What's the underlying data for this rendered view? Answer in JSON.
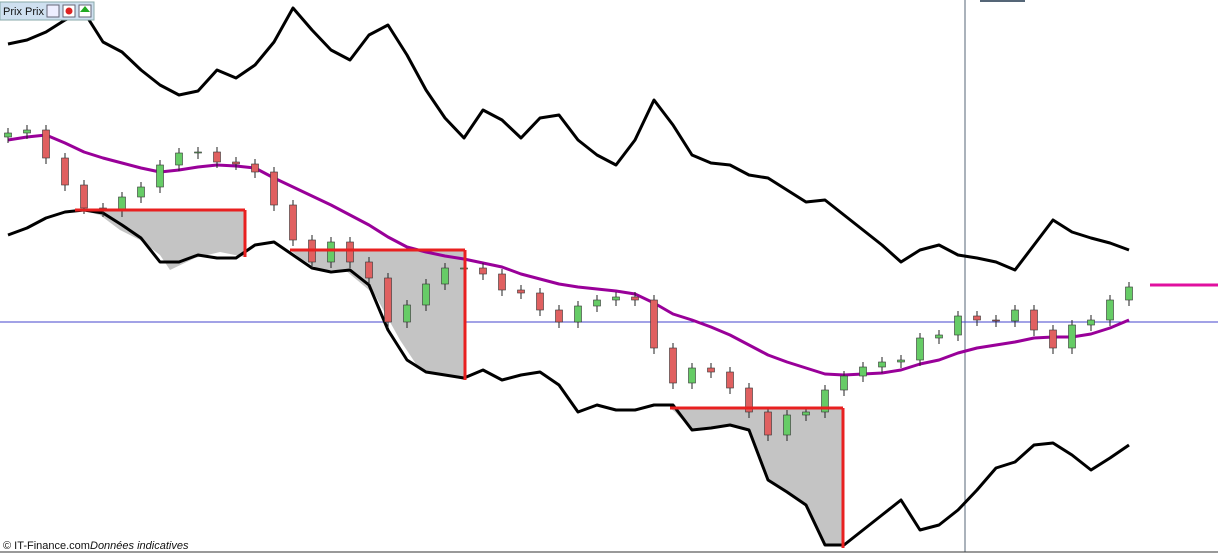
{
  "header": {
    "title": "Prix Prix"
  },
  "footer": {
    "source": "© IT-Finance.com",
    "note": "Données indicatives"
  },
  "chart_data": {
    "type": "candlestick",
    "categories": [
      null,
      null,
      null,
      null,
      null,
      null,
      null,
      null,
      null,
      null,
      null,
      null,
      null,
      null,
      null,
      null,
      null,
      null,
      null,
      null,
      null,
      null,
      null,
      null,
      null,
      null,
      null,
      null,
      null,
      null,
      null,
      null,
      null,
      null,
      null,
      null,
      null,
      null,
      null,
      null,
      null,
      null,
      null,
      null,
      null,
      null,
      null,
      null,
      null,
      null,
      null,
      null,
      null,
      null,
      null,
      null,
      null,
      null,
      null,
      null
    ],
    "open": [
      418,
      422,
      425,
      397,
      370,
      347,
      344,
      358,
      368,
      390,
      402,
      403,
      393,
      391,
      383,
      350,
      315,
      293,
      313,
      293,
      277,
      233,
      250,
      271,
      287,
      287,
      281,
      265,
      262,
      245,
      233,
      249,
      255,
      258,
      255,
      207,
      172,
      187,
      183,
      167,
      143,
      120,
      140,
      143,
      165,
      179,
      188,
      193,
      195,
      217,
      220,
      239,
      235,
      234,
      245,
      225,
      207,
      230,
      235,
      255
    ],
    "high": [
      427,
      430,
      430,
      402,
      375,
      352,
      363,
      373,
      395,
      407,
      408,
      408,
      398,
      396,
      388,
      355,
      320,
      318,
      318,
      298,
      282,
      255,
      276,
      292,
      292,
      292,
      286,
      270,
      267,
      250,
      254,
      260,
      263,
      263,
      260,
      212,
      192,
      192,
      188,
      172,
      148,
      145,
      148,
      170,
      184,
      193,
      198,
      200,
      222,
      225,
      244,
      244,
      240,
      250,
      250,
      230,
      235,
      240,
      260,
      273
    ],
    "low": [
      412,
      416,
      391,
      364,
      341,
      338,
      338,
      352,
      362,
      384,
      396,
      387,
      385,
      377,
      344,
      309,
      287,
      287,
      287,
      271,
      227,
      227,
      244,
      265,
      281,
      275,
      259,
      256,
      239,
      227,
      227,
      243,
      249,
      249,
      201,
      166,
      166,
      177,
      161,
      137,
      114,
      114,
      134,
      137,
      159,
      173,
      182,
      187,
      189,
      211,
      214,
      229,
      228,
      228,
      219,
      201,
      201,
      224,
      229,
      249
    ],
    "close": [
      422,
      425,
      397,
      370,
      347,
      344,
      358,
      368,
      390,
      402,
      403,
      393,
      391,
      383,
      350,
      315,
      293,
      313,
      293,
      277,
      233,
      250,
      271,
      287,
      287,
      281,
      265,
      262,
      245,
      233,
      249,
      255,
      258,
      255,
      207,
      172,
      187,
      183,
      167,
      143,
      120,
      140,
      143,
      165,
      179,
      188,
      193,
      195,
      217,
      220,
      239,
      235,
      234,
      245,
      225,
      207,
      230,
      235,
      255,
      268
    ],
    "up_color": "#66cc66",
    "down_color": "#e06060",
    "series": [
      {
        "color": "#000000",
        "values": [
          511,
          515,
          523,
          535,
          543,
          513,
          503,
          485,
          470,
          460,
          464,
          485,
          477,
          490,
          513,
          547,
          525,
          505,
          495,
          520,
          530,
          500,
          465,
          437,
          417,
          445,
          435,
          417,
          437,
          440,
          415,
          400,
          390,
          415,
          455,
          430,
          400,
          392,
          390,
          380,
          377,
          365,
          353,
          355,
          340,
          325,
          310,
          293,
          305,
          310,
          300,
          297,
          293,
          285,
          310,
          335,
          323,
          317,
          312,
          305
        ]
      },
      {
        "color": "#000000",
        "values": [
          320,
          327,
          337,
          343,
          345,
          342,
          330,
          317,
          293,
          293,
          300,
          297,
          297,
          310,
          313,
          300,
          287,
          283,
          285,
          270,
          225,
          195,
          183,
          180,
          177,
          185,
          175,
          180,
          183,
          170,
          143,
          150,
          145,
          145,
          150,
          150,
          125,
          127,
          130,
          125,
          75,
          63,
          50,
          10,
          10,
          25,
          40,
          55,
          25,
          30,
          45,
          65,
          87,
          93,
          110,
          112,
          100,
          85,
          97,
          110
        ]
      },
      {
        "color": "#990099",
        "values": [
          415,
          418,
          420,
          412,
          403,
          397,
          392,
          387,
          383,
          385,
          388,
          390,
          389,
          387,
          377,
          368,
          359,
          350,
          340,
          330,
          318,
          308,
          303,
          299,
          296,
          292,
          288,
          281,
          276,
          271,
          268,
          266,
          264,
          261,
          252,
          241,
          235,
          228,
          220,
          210,
          200,
          193,
          187,
          181,
          180,
          181,
          182,
          185,
          191,
          195,
          202,
          207,
          210,
          213,
          217,
          218,
          218,
          221,
          227,
          235
        ]
      }
    ],
    "ylim": [
      0,
      555
    ]
  }
}
